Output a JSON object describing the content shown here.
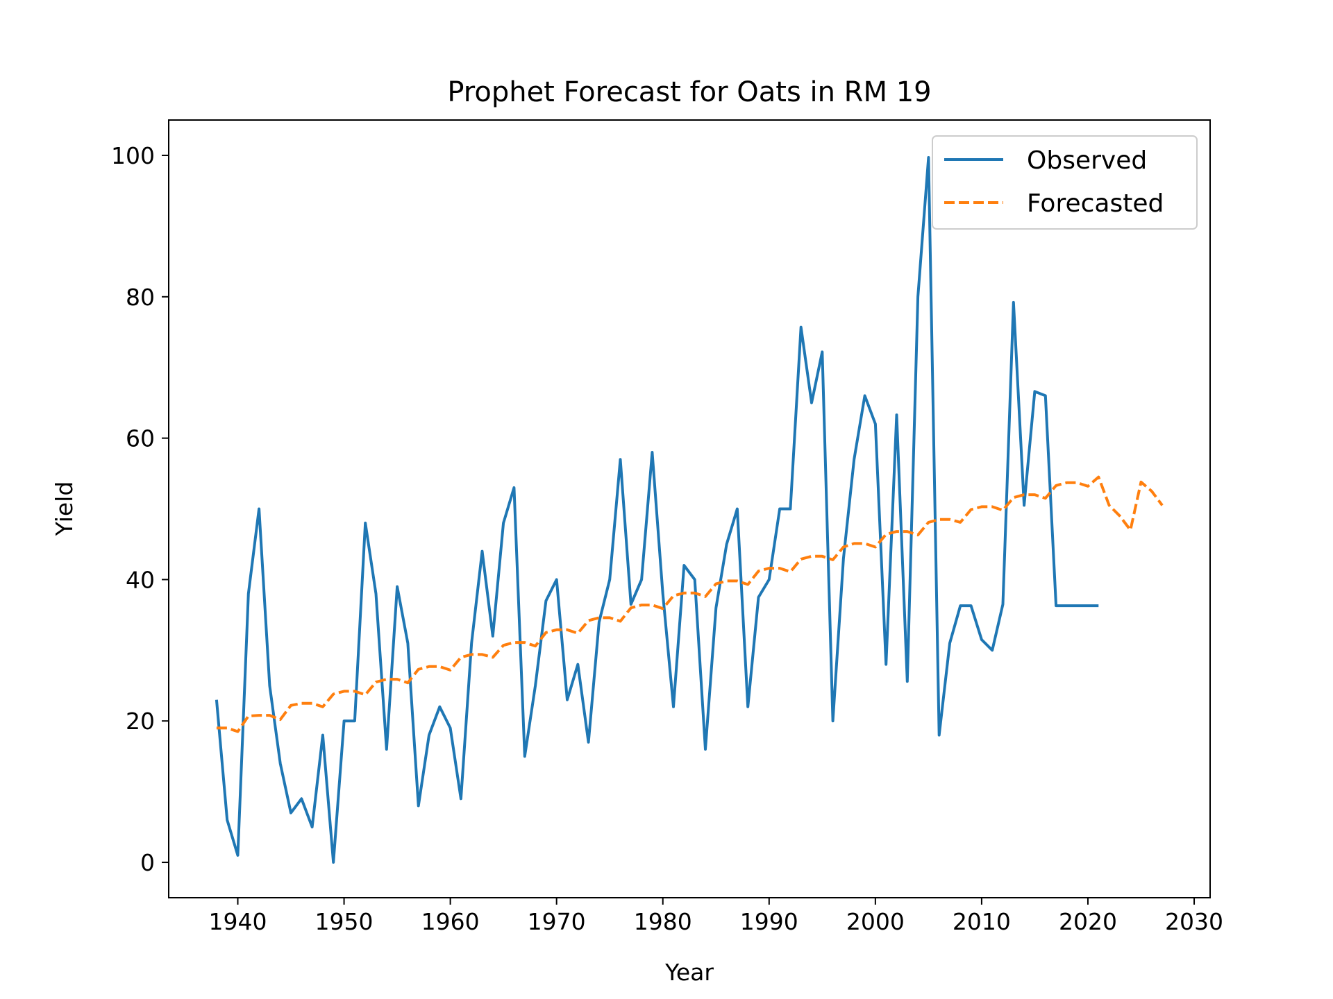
{
  "chart_data": {
    "type": "line",
    "title": "Prophet Forecast for Oats in RM 19",
    "xlabel": "Year",
    "ylabel": "Yield",
    "xlim": [
      1933.5,
      2031.5
    ],
    "ylim": [
      -5,
      105
    ],
    "xticks": [
      1940,
      1950,
      1960,
      1970,
      1980,
      1990,
      2000,
      2010,
      2020,
      2030
    ],
    "yticks": [
      0,
      20,
      40,
      60,
      80,
      100
    ],
    "grid": false,
    "legend": "upper right",
    "series": [
      {
        "name": "Observed",
        "color": "#1f77b4",
        "style": "solid",
        "x": [
          1938,
          1939,
          1940,
          1941,
          1942,
          1943,
          1944,
          1945,
          1946,
          1947,
          1948,
          1949,
          1950,
          1951,
          1952,
          1953,
          1954,
          1955,
          1956,
          1957,
          1958,
          1959,
          1960,
          1961,
          1962,
          1963,
          1964,
          1965,
          1966,
          1967,
          1968,
          1969,
          1970,
          1971,
          1972,
          1973,
          1974,
          1975,
          1976,
          1977,
          1978,
          1979,
          1980,
          1981,
          1982,
          1983,
          1984,
          1985,
          1986,
          1987,
          1988,
          1989,
          1990,
          1991,
          1992,
          1993,
          1994,
          1995,
          1996,
          1997,
          1998,
          1999,
          2000,
          2001,
          2002,
          2003,
          2004,
          2005,
          2006,
          2007,
          2008,
          2009,
          2010,
          2011,
          2012,
          2013,
          2014,
          2015,
          2016,
          2017,
          2018,
          2019,
          2020,
          2021
        ],
        "y": [
          23,
          6,
          1,
          38,
          50,
          25,
          14,
          7,
          9,
          5,
          18,
          0,
          20,
          20,
          48,
          38,
          16,
          39,
          31,
          8,
          18,
          22,
          19,
          9,
          31,
          44,
          32,
          48,
          53,
          15,
          25,
          37,
          40,
          23,
          28,
          17,
          34,
          40,
          57,
          36.5,
          40,
          58,
          38,
          22,
          42,
          40,
          16,
          36,
          45,
          50,
          22,
          37.5,
          40,
          50,
          50,
          75.7,
          65,
          72.2,
          20,
          43,
          57,
          66,
          62,
          28,
          63.3,
          25.6,
          80,
          99.7,
          18,
          31,
          36.3,
          36.3,
          31.5,
          30,
          36.5,
          79.2,
          50.5,
          66.6,
          66,
          36.3,
          36.3,
          36.3,
          36.3,
          36.3
        ]
      },
      {
        "name": "Forecasted",
        "color": "#ff7f0e",
        "style": "dashed",
        "x": [
          1938,
          1939,
          1940,
          1941,
          1942,
          1943,
          1944,
          1945,
          1946,
          1947,
          1948,
          1949,
          1950,
          1951,
          1952,
          1953,
          1954,
          1955,
          1956,
          1957,
          1958,
          1959,
          1960,
          1961,
          1962,
          1963,
          1964,
          1965,
          1966,
          1967,
          1968,
          1969,
          1970,
          1971,
          1972,
          1973,
          1974,
          1975,
          1976,
          1977,
          1978,
          1979,
          1980,
          1981,
          1982,
          1983,
          1984,
          1985,
          1986,
          1987,
          1988,
          1989,
          1990,
          1991,
          1992,
          1993,
          1994,
          1995,
          1996,
          1997,
          1998,
          1999,
          2000,
          2001,
          2002,
          2003,
          2004,
          2005,
          2006,
          2007,
          2008,
          2009,
          2010,
          2011,
          2012,
          2013,
          2014,
          2015,
          2016,
          2017,
          2018,
          2019,
          2020,
          2021,
          2022,
          2023,
          2024,
          2025,
          2026,
          2027
        ],
        "y": [
          19,
          19,
          18.5,
          20.7,
          20.8,
          20.8,
          20.2,
          22.2,
          22.5,
          22.5,
          22,
          23.8,
          24.2,
          24.2,
          23.7,
          25.5,
          25.9,
          25.9,
          25.4,
          27.3,
          27.7,
          27.7,
          27.2,
          29,
          29.4,
          29.4,
          29,
          30.7,
          31.1,
          31.1,
          30.6,
          32.5,
          32.9,
          32.9,
          32.4,
          34.2,
          34.6,
          34.6,
          34.1,
          36,
          36.4,
          36.4,
          35.9,
          37.7,
          38.1,
          38.1,
          37.6,
          39.4,
          39.8,
          39.8,
          39.3,
          41.2,
          41.6,
          41.6,
          41.1,
          42.9,
          43.3,
          43.3,
          42.8,
          44.6,
          45.1,
          45.1,
          44.6,
          46.4,
          46.8,
          46.8,
          46.3,
          48.1,
          48.5,
          48.5,
          48.1,
          49.9,
          50.3,
          50.3,
          49.8,
          51.6,
          52,
          52,
          51.5,
          53.3,
          53.7,
          53.7,
          53.2,
          54.5,
          50.5,
          49,
          47,
          53.8,
          52.5,
          50.5
        ]
      }
    ]
  }
}
